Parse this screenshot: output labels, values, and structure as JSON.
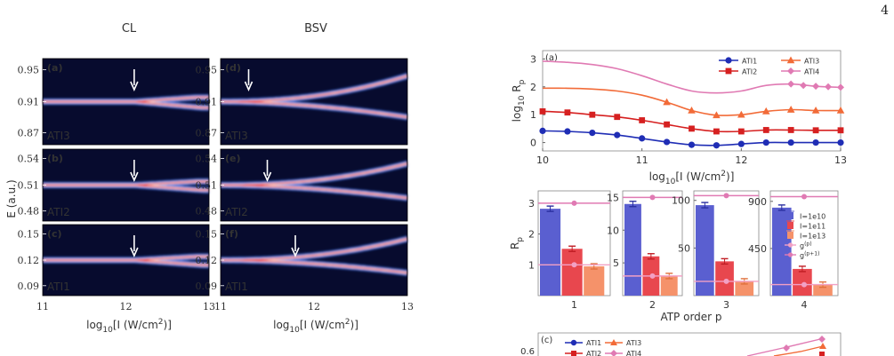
{
  "page": {
    "number": "4"
  },
  "heatmaps": {
    "col_titles": [
      "CL",
      "BSV"
    ],
    "ylabel": "E (a.u.)",
    "xlabel": "log10[I (W/cm2)]",
    "xticks": [
      "11",
      "12",
      "13"
    ],
    "panels": [
      {
        "label": "(a)",
        "name": "ATI3",
        "yticks": [
          "0.95",
          "0.91",
          "0.87"
        ],
        "mode": "CL",
        "arrow_logI": 12.1
      },
      {
        "label": "(d)",
        "name": "ATI3",
        "yticks": [
          "0.95",
          "0.91",
          "0.87"
        ],
        "mode": "BSV",
        "arrow_logI": 11.3
      },
      {
        "label": "(b)",
        "name": "ATI2",
        "yticks": [
          "0.54",
          "0.51",
          "0.48"
        ],
        "mode": "CL",
        "arrow_logI": 12.1
      },
      {
        "label": "(e)",
        "name": "ATI2",
        "yticks": [
          "0.54",
          "0.51",
          "0.48"
        ],
        "mode": "BSV",
        "arrow_logI": 11.5
      },
      {
        "label": "(c)",
        "name": "ATI1",
        "yticks": [
          "0.15",
          "0.12",
          "0.09"
        ],
        "mode": "CL",
        "arrow_logI": 12.1
      },
      {
        "label": "(f)",
        "name": "ATI1",
        "yticks": [
          "0.15",
          "0.12",
          "0.09"
        ],
        "mode": "BSV",
        "arrow_logI": 11.8
      }
    ]
  },
  "chart_data": [
    {
      "type": "line",
      "panel_label": "(a)",
      "xlabel": "log10[I (W/cm2)]",
      "ylabel": "log10 Rp",
      "xlim": [
        10,
        13
      ],
      "ylim": [
        -0.3,
        3.3
      ],
      "xticks": [
        "10",
        "11",
        "12",
        "13"
      ],
      "yticks": [
        "0",
        "1",
        "2",
        "3"
      ],
      "legend_placement": "top-right",
      "series": [
        {
          "name": "ATI1",
          "color": "#1f2db5",
          "marker": "circle",
          "x": [
            10,
            10.25,
            10.5,
            10.75,
            11,
            11.25,
            11.5,
            11.75,
            12,
            12.25,
            12.5,
            12.75,
            13
          ],
          "y": [
            0.42,
            0.4,
            0.35,
            0.27,
            0.15,
            0.02,
            -0.08,
            -0.1,
            -0.05,
            0.0,
            0.0,
            0.0,
            0.0
          ],
          "markers_x": [
            10,
            10.25,
            10.5,
            10.75,
            11,
            11.25,
            11.5,
            11.75,
            12,
            12.25,
            12.5,
            12.75,
            13
          ],
          "markers_y": [
            0.42,
            0.4,
            0.35,
            0.27,
            0.15,
            0.02,
            -0.08,
            -0.1,
            -0.05,
            0.0,
            0.0,
            0.0,
            0.0
          ]
        },
        {
          "name": "ATI2",
          "color": "#d62020",
          "marker": "square",
          "x": [
            10,
            10.25,
            10.5,
            10.75,
            11,
            11.25,
            11.5,
            11.75,
            12,
            12.25,
            12.5,
            12.75,
            13
          ],
          "y": [
            1.12,
            1.08,
            1.0,
            0.92,
            0.8,
            0.65,
            0.5,
            0.4,
            0.4,
            0.45,
            0.45,
            0.44,
            0.44
          ],
          "markers_x": [
            10,
            10.25,
            10.5,
            10.75,
            11,
            11.25,
            11.5,
            11.75,
            12,
            12.25,
            12.5,
            12.75,
            13
          ],
          "markers_y": [
            1.12,
            1.08,
            1.0,
            0.92,
            0.8,
            0.65,
            0.5,
            0.4,
            0.4,
            0.45,
            0.45,
            0.44,
            0.44
          ]
        },
        {
          "name": "ATI3",
          "color": "#f26b38",
          "marker": "triangle",
          "x": [
            10,
            10.25,
            10.5,
            10.75,
            11,
            11.25,
            11.5,
            11.75,
            12,
            12.25,
            12.5,
            12.75,
            13
          ],
          "y": [
            1.95,
            1.95,
            1.92,
            1.85,
            1.7,
            1.45,
            1.15,
            0.98,
            1.0,
            1.12,
            1.18,
            1.15,
            1.15
          ],
          "markers_x": [
            11.25,
            11.5,
            11.75,
            12,
            12.25,
            12.5,
            12.75,
            13
          ],
          "markers_y": [
            1.45,
            1.15,
            0.98,
            1.0,
            1.12,
            1.18,
            1.15,
            1.15
          ]
        },
        {
          "name": "ATI4",
          "color": "#e07ab3",
          "marker": "diamond",
          "x": [
            10,
            10.25,
            10.5,
            10.75,
            11,
            11.25,
            11.5,
            11.75,
            12,
            12.25,
            12.5,
            12.75,
            13
          ],
          "y": [
            2.92,
            2.88,
            2.8,
            2.65,
            2.4,
            2.1,
            1.85,
            1.78,
            1.85,
            2.05,
            2.1,
            2.02,
            1.98
          ],
          "markers_x": [
            12.5,
            12.625,
            12.75,
            12.875,
            13
          ],
          "markers_y": [
            2.1,
            2.05,
            2.02,
            2.0,
            1.98
          ]
        }
      ]
    },
    {
      "type": "bar",
      "panel_label": "(b)",
      "ylabel": "Rp",
      "xlabel": "ATP order p",
      "groups": [
        "1",
        "2",
        "3",
        "4"
      ],
      "legend": [
        "I=1e10",
        "I=1e11",
        "I=1e13",
        "g(p)",
        "g(p+1)"
      ],
      "series_colors": [
        "#5a5fd0",
        "#e8474e",
        "#f5926a"
      ],
      "g_colors": [
        "#f2a0c4",
        "#e07ab3"
      ],
      "subplots": [
        {
          "group": "1",
          "yticks": [
            "1",
            "2",
            "3"
          ],
          "ylim": [
            0,
            3.4
          ],
          "values": [
            2.82,
            1.52,
            0.95
          ],
          "gp": 1.0,
          "gp1": 3.0
        },
        {
          "group": "2",
          "yticks": [
            "5",
            "10",
            "15"
          ],
          "ylim": [
            0,
            16
          ],
          "values": [
            14.0,
            6.0,
            3.0
          ],
          "gp": 3.0,
          "gp1": 15.0
        },
        {
          "group": "3",
          "yticks": [
            "50",
            "100"
          ],
          "ylim": [
            0,
            110
          ],
          "values": [
            95,
            36,
            15
          ],
          "gp": 15.0,
          "gp1": 105.0
        },
        {
          "group": "4",
          "yticks": [
            "450",
            "900"
          ],
          "ylim": [
            0,
            1000
          ],
          "values": [
            840,
            255,
            105
          ],
          "gp": 105.0,
          "gp1": 945.0
        }
      ]
    },
    {
      "type": "line",
      "panel_label": "(c)",
      "ytick_visible": "0.6",
      "legend": [
        "ATI1",
        "ATI3",
        "ATI2",
        "ATI4"
      ]
    }
  ]
}
